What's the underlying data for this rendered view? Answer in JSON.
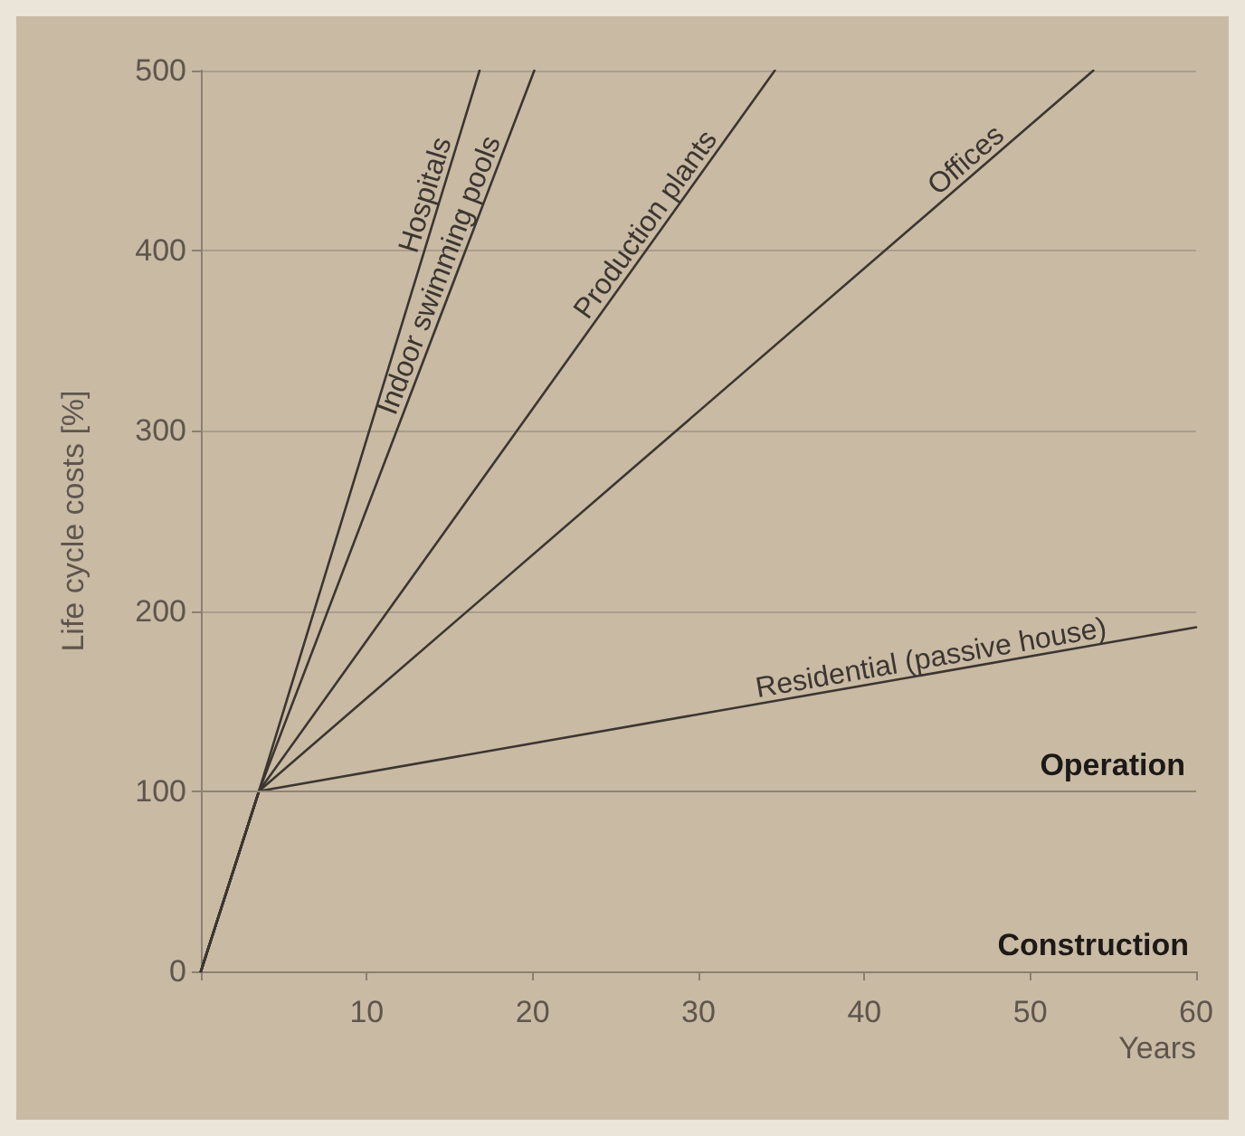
{
  "chart_data": {
    "type": "line",
    "xlabel": "Years",
    "ylabel": "Life cycle costs [%]",
    "series": [
      {
        "name": "Hospitals",
        "color": "#3b3631",
        "x": [
          0,
          3.5,
          16.8
        ],
        "values": [
          0,
          100,
          500
        ]
      },
      {
        "name": "Indoor swimming pools",
        "color": "#3b3631",
        "x": [
          0,
          3.5,
          20.1
        ],
        "values": [
          0,
          100,
          500
        ]
      },
      {
        "name": "Production plants",
        "color": "#3b3631",
        "x": [
          0,
          3.5,
          34.6
        ],
        "values": [
          0,
          100,
          500
        ]
      },
      {
        "name": "Offices",
        "color": "#3b3631",
        "x": [
          0,
          3.5,
          53.8
        ],
        "values": [
          0,
          100,
          500
        ]
      },
      {
        "name": "Residential (passive house)",
        "color": "#3b3631",
        "x": [
          0,
          3.5,
          60
        ],
        "values": [
          0,
          100,
          191
        ]
      }
    ],
    "ref_lines": [
      {
        "axis": "y",
        "value": 100,
        "label": "Operation",
        "color": "#8e8477"
      }
    ],
    "annotations": [
      "Construction"
    ],
    "xlim": [
      0,
      60
    ],
    "xticks": [
      {
        "value": 0,
        "label": null
      },
      10,
      20,
      30,
      40,
      50,
      60
    ],
    "ylim": [
      0,
      500
    ],
    "yticks": [
      0,
      100,
      200,
      300,
      400,
      500
    ],
    "grid": "y",
    "legend": false,
    "marker": "none",
    "line_style": "solid"
  }
}
